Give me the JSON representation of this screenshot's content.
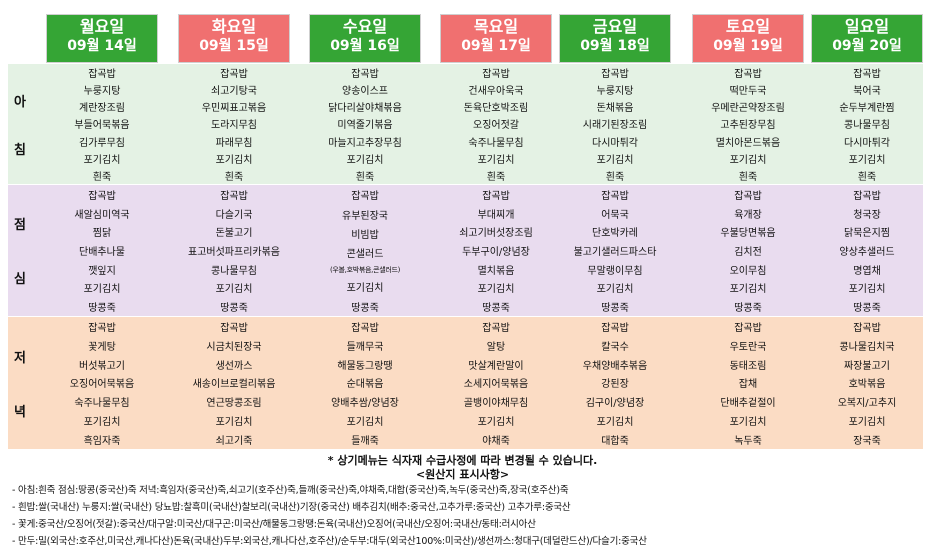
{
  "days": [
    {
      "day": "월요일",
      "date": "09월 14일",
      "color": "#35a535",
      "breakfast": [
        "잡곡밥",
        "누룽지탕",
        "계란장조림",
        "부들어묵볶음",
        "김가루무침",
        "포기김치",
        "흰죽"
      ],
      "lunch": [
        "잡곡밥",
        "새알심미역국",
        "찜닭",
        "단배추나물",
        "깻잎지",
        "포기김치",
        "땅콩죽"
      ],
      "dinner": [
        "잡곡밥",
        "꽃게탕",
        "버섯볶고기",
        "오징어어묵볶음",
        "숙주나물무침",
        "포기김치",
        "흑임자죽"
      ]
    },
    {
      "day": "화요일",
      "date": "09월 15일",
      "color": "#f07070",
      "breakfast": [
        "잡곡밥",
        "쇠고기탕국",
        "우민찌표고볶음",
        "도라지무침",
        "파래무침",
        "포기김치",
        "흰죽"
      ],
      "lunch": [
        "잡곡밥",
        "다슬기국",
        "돈불고기",
        "표고버섯파프리카볶음",
        "콩나물무침",
        "포기김치",
        "땅콩죽"
      ],
      "dinner": [
        "잡곡밥",
        "시금치된장국",
        "생선까스",
        "새송이브로컬리볶음",
        "연근땅콩조림",
        "포기김치",
        "쇠고기죽"
      ]
    },
    {
      "day": "수요일",
      "date": "09월 16일",
      "color": "#35a535",
      "breakfast": [
        "잡곡밥",
        "양송이스프",
        "닭다리살야채볶음",
        "미역줄기볶음",
        "마늘지고추장무침",
        "포기김치",
        "흰죽"
      ],
      "lunch": [
        "잡곡밥",
        "유부된장국",
        "비빔밥",
        "콘샐러드",
        "(우볼,호박볶음,콘샐러드)",
        "포기김치",
        "땅콩죽"
      ],
      "dinner": [
        "잡곡밥",
        "들깨무국",
        "해물동그랑땡",
        "순대볶음",
        "양배추쌈/양념장",
        "포기김치",
        "들깨죽"
      ]
    },
    {
      "day": "목요일",
      "date": "09월 17일",
      "color": "#f07070",
      "breakfast": [
        "잡곡밥",
        "건새우아욱국",
        "돈육단호박조림",
        "오징어젓갈",
        "숙주나물무침",
        "포기김치",
        "흰죽"
      ],
      "lunch": [
        "잡곡밥",
        "부대찌개",
        "쇠고기버섯장조림",
        "두부구이/양념장",
        "멸치볶음",
        "포기김치",
        "땅콩죽"
      ],
      "dinner": [
        "잡곡밥",
        "알탕",
        "맛살계란말이",
        "소세지어묵볶음",
        "골뱅이야채무침",
        "포기김치",
        "야채죽"
      ]
    },
    {
      "day": "금요일",
      "date": "09월 18일",
      "color": "#35a535",
      "breakfast": [
        "잡곡밥",
        "누룽지탕",
        "돈채볶음",
        "시래기된장조림",
        "다시마튀각",
        "포기김치",
        "흰죽"
      ],
      "lunch": [
        "잡곡밥",
        "어묵국",
        "단호박카레",
        "불고기샐러드파스타",
        "무말랭이무침",
        "포기김치",
        "땅콩죽"
      ],
      "dinner": [
        "잡곡밥",
        "칼국수",
        "우채양배추볶음",
        "강된장",
        "김구이/양념장",
        "포기김치",
        "대합죽"
      ]
    },
    {
      "day": "토요일",
      "date": "09월 19일",
      "color": "#f07070",
      "breakfast": [
        "잡곡밥",
        "떡만두국",
        "우메란곤약장조림",
        "고추된장무침",
        "멸치아몬드볶음",
        "포기김치",
        "흰죽"
      ],
      "lunch": [
        "잡곡밥",
        "육개장",
        "우불당면볶음",
        "김치전",
        "오이무침",
        "포기김치",
        "땅콩죽"
      ],
      "dinner": [
        "잡곡밥",
        "우토란국",
        "동태조림",
        "잡채",
        "단배추겉절이",
        "포기김치",
        "녹두죽"
      ]
    },
    {
      "day": "일요일",
      "date": "09월 20일",
      "color": "#35a535",
      "breakfast": [
        "잡곡밥",
        "북어국",
        "순두부계란찜",
        "콩나물무침",
        "다시마튀각",
        "포기김치",
        "흰죽"
      ],
      "lunch": [
        "잡곡밥",
        "청국장",
        "닭묵은지찜",
        "양상추샐러드",
        "명엽채",
        "포기김치",
        "땅콩죽"
      ],
      "dinner": [
        "잡곡밥",
        "콩나물김치국",
        "짜장불고기",
        "호박볶음",
        "오복지/고추지",
        "포기김치",
        "장국죽"
      ]
    }
  ],
  "meals": [
    {
      "key": "breakfast",
      "label": [
        "아",
        "침"
      ]
    },
    {
      "key": "lunch",
      "label": [
        "점",
        "심"
      ]
    },
    {
      "key": "dinner",
      "label": [
        "저",
        "녁"
      ]
    }
  ],
  "notice": "*  상기메뉴는 식자재 수급사정에 따라 변경될 수 있습니다.",
  "origin_title": "<원산지 표시사항>",
  "origins": [
    "- 아침:흰죽  점심:땅콩(중국산)죽  저녁:흑임자(중국산)죽,쇠고기(호주산)죽,들깨(중국산)죽,야채죽,대합(중국산)죽,녹두(중국산)죽,장국(호주산)죽",
    "- 흰밥:쌀(국내산)  누룽지:쌀(국내산)  당뇨밥:찰흑미(국내산)찰보리(국내산)기장(중국산)  배추김치(배추:중국산,고추가루:중국산)  고추가루:중국산",
    "- 꽃게:중국산/오징어(젓갈):중국산/대구알:미국산/대구곤:미국산/해물동그랑땡:돈육(국내산)오징어(국내산/오징어:국내산/동태:러시아산",
    "- 만두:밀(외국산:호주산,미국산,캐나다산)돈육(국내산)두부:외국산,캐나다산,호주산)/순두부:대두(외국산100%:미국산)/생선까스:청대구(데덜란드산)/다슬기:중국산"
  ]
}
